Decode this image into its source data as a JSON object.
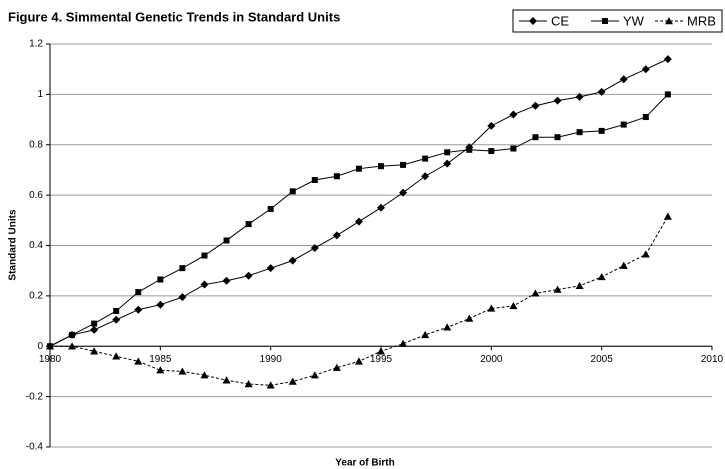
{
  "chart_data": {
    "type": "line",
    "title": "Figure 4. Simmental Genetic Trends in Standard Units",
    "x_label": "Year of Birth",
    "y_label": "Standard Units",
    "x": [
      1980,
      1981,
      1982,
      1983,
      1984,
      1985,
      1986,
      1987,
      1988,
      1989,
      1990,
      1991,
      1992,
      1993,
      1994,
      1995,
      1996,
      1997,
      1998,
      1999,
      2000,
      2001,
      2002,
      2003,
      2004,
      2005,
      2006,
      2007,
      2008
    ],
    "series": [
      {
        "name": "CE",
        "color": "#000000",
        "marker": "diamond",
        "dashed": false,
        "values": [
          0,
          0.045,
          0.065,
          0.105,
          0.145,
          0.165,
          0.195,
          0.245,
          0.26,
          0.28,
          0.31,
          0.34,
          0.39,
          0.44,
          0.495,
          0.55,
          0.61,
          0.675,
          0.725,
          0.79,
          0.875,
          0.92,
          0.955,
          0.975,
          0.99,
          1.01,
          1.06,
          1.1,
          1.14
        ]
      },
      {
        "name": "YW",
        "color": "#000000",
        "marker": "square",
        "dashed": false,
        "values": [
          0,
          0.045,
          0.09,
          0.14,
          0.215,
          0.265,
          0.31,
          0.36,
          0.42,
          0.485,
          0.545,
          0.615,
          0.66,
          0.675,
          0.705,
          0.715,
          0.72,
          0.745,
          0.77,
          0.78,
          0.775,
          0.785,
          0.83,
          0.83,
          0.85,
          0.855,
          0.88,
          0.91,
          1.0
        ]
      },
      {
        "name": "MRB",
        "color": "#000000",
        "marker": "triangle",
        "dashed": true,
        "values": [
          0,
          0,
          -0.02,
          -0.04,
          -0.06,
          -0.095,
          -0.1,
          -0.115,
          -0.135,
          -0.15,
          -0.155,
          -0.14,
          -0.115,
          -0.085,
          -0.06,
          -0.02,
          0.01,
          0.045,
          0.075,
          0.11,
          0.15,
          0.16,
          0.21,
          0.225,
          0.24,
          0.275,
          0.32,
          0.365,
          0.515
        ]
      }
    ],
    "xlim": [
      1980,
      2010
    ],
    "xticks": [
      1980,
      1985,
      1990,
      1995,
      2000,
      2005,
      2010
    ],
    "ylim": [
      -0.4,
      1.2
    ],
    "yticks": [
      -0.4,
      -0.2,
      0,
      0.2,
      0.4,
      0.6,
      0.8,
      1,
      1.2
    ],
    "grid": true,
    "legend": "top-right"
  }
}
